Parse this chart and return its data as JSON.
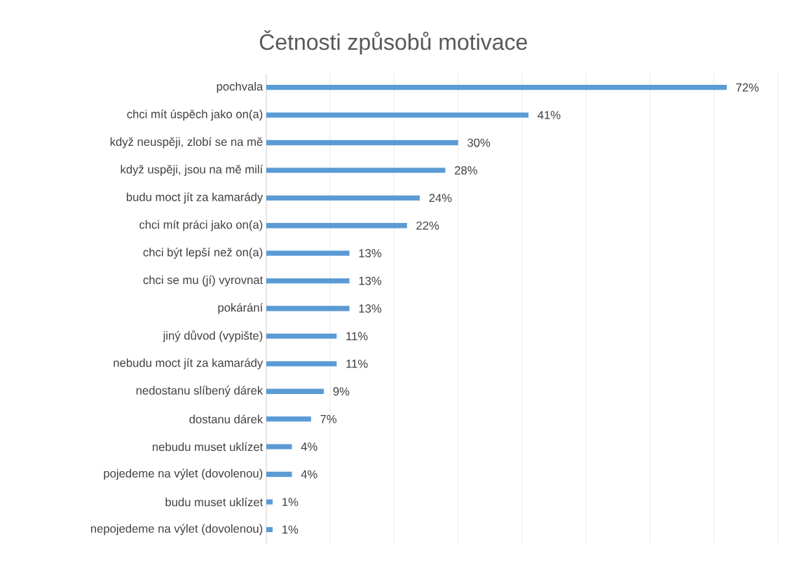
{
  "chart_data": {
    "type": "bar",
    "orientation": "horizontal",
    "title": "Četnosti způsobů motivace",
    "categories": [
      "pochvala",
      "chci mít úspěch jako on(a)",
      "když neuspěji, zlobí se na mě",
      "když uspěji, jsou na mě milí",
      "budu moct jít za kamarády",
      "chci mít práci jako on(a)",
      "chci být lepší než on(a)",
      "chci se mu (jí) vyrovnat",
      "pokárání",
      "jiný důvod (vypište)",
      "nebudu moct jít za kamarády",
      "nedostanu slíbený dárek",
      "dostanu dárek",
      "nebudu muset uklízet",
      "pojedeme na výlet (dovolenou)",
      "budu muset uklízet",
      "nepojedeme na výlet (dovolenou)"
    ],
    "values": [
      72,
      41,
      30,
      28,
      24,
      22,
      13,
      13,
      13,
      11,
      11,
      9,
      7,
      4,
      4,
      1,
      1
    ],
    "value_labels": [
      "72%",
      "41%",
      "30%",
      "28%",
      "24%",
      "22%",
      "13%",
      "13%",
      "13%",
      "11%",
      "11%",
      "9%",
      "7%",
      "4%",
      "4%",
      "1%",
      "1%"
    ],
    "color": "#5b9bd5",
    "xlim": [
      0,
      80
    ],
    "xticks": [
      {
        "value": 0,
        "label": null
      },
      {
        "value": 10,
        "label": null
      },
      {
        "value": 20,
        "label": null
      },
      {
        "value": 30,
        "label": null
      },
      {
        "value": 40,
        "label": null
      },
      {
        "value": 50,
        "label": null
      },
      {
        "value": 60,
        "label": null
      },
      {
        "value": 70,
        "label": null
      },
      {
        "value": 80,
        "label": null
      }
    ],
    "grid": "x",
    "tick_labels": "y"
  }
}
